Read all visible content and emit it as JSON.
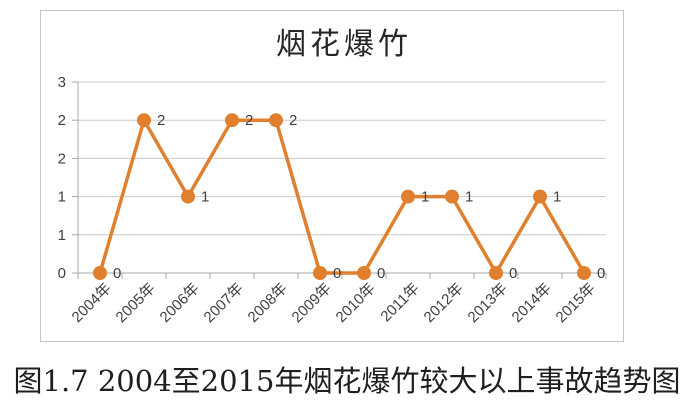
{
  "figure": {
    "caption": "图1.7 2004至2015年烟花爆竹较大以上事故趋势图"
  },
  "chart_data": {
    "type": "line",
    "title": "烟花爆竹",
    "categories": [
      "2004年",
      "2005年",
      "2006年",
      "2007年",
      "2008年",
      "2009年",
      "2010年",
      "2011年",
      "2012年",
      "2013年",
      "2014年",
      "2015年"
    ],
    "values": [
      0,
      2,
      1,
      2,
      2,
      0,
      0,
      1,
      1,
      0,
      1,
      0
    ],
    "data_labels": [
      "0",
      "2",
      "1",
      "2",
      "2",
      "0",
      "0",
      "1",
      "1",
      "0",
      "1",
      "0"
    ],
    "xlabel": "",
    "ylabel": "",
    "ylim": [
      0,
      2.5
    ],
    "ytick_values": [
      0,
      0.5,
      1,
      1.5,
      2,
      2.5
    ],
    "ytick_labels": [
      "0",
      "1",
      "1",
      "2",
      "2",
      "3"
    ],
    "grid": "horizontal-only",
    "legend": "none",
    "marker": "circle",
    "colors": {
      "line": "#e0802f",
      "marker_fill": "#e0802f",
      "gridline": "#c9c9c9",
      "axis": "#a8a8a8",
      "tick_label": "#404040",
      "data_label": "#404040",
      "title": "#262626",
      "frame_border": "#c6c6c6",
      "background": "#ffffff"
    }
  }
}
